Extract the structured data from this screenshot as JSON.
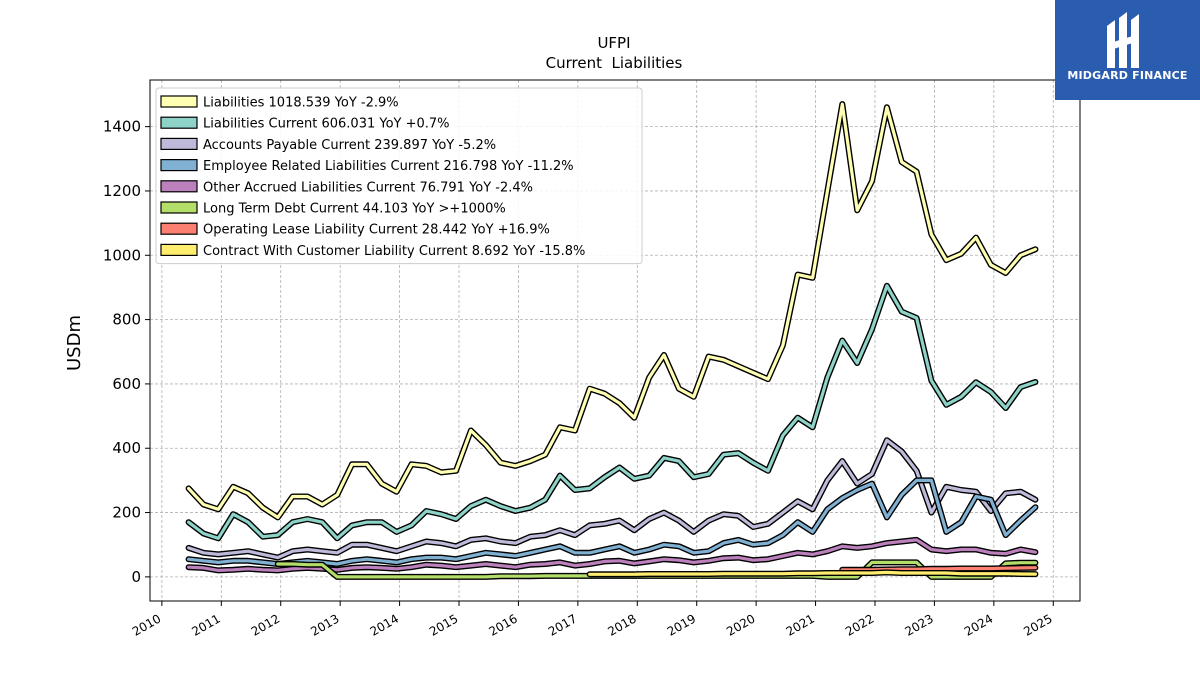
{
  "chart_data": {
    "type": "line",
    "title": "UFPI",
    "subtitle": "Current  Liabilities",
    "ylabel": "USDm",
    "xlabel": "",
    "xlim": [
      2009.8,
      2025.45
    ],
    "ylim": [
      -75,
      1545
    ],
    "xticks": [
      2010,
      2011,
      2012,
      2013,
      2014,
      2015,
      2016,
      2017,
      2018,
      2019,
      2020,
      2021,
      2022,
      2023,
      2024,
      2025
    ],
    "yticks": [
      0,
      200,
      400,
      600,
      800,
      1000,
      1200,
      1400
    ],
    "grid": true,
    "legend_position": "top-left",
    "series": [
      {
        "name": "Liabilities  1018.539 YoY -2.9%",
        "color": "#ffffb3",
        "x": [
          2010.45,
          2010.7,
          2010.95,
          2011.2,
          2011.45,
          2011.7,
          2011.95,
          2012.2,
          2012.45,
          2012.7,
          2012.95,
          2013.2,
          2013.45,
          2013.7,
          2013.95,
          2014.2,
          2014.45,
          2014.7,
          2014.95,
          2015.2,
          2015.45,
          2015.7,
          2015.95,
          2016.2,
          2016.45,
          2016.7,
          2016.95,
          2017.2,
          2017.45,
          2017.7,
          2017.95,
          2018.2,
          2018.45,
          2018.7,
          2018.95,
          2019.2,
          2019.45,
          2019.7,
          2019.95,
          2020.2,
          2020.45,
          2020.7,
          2020.95,
          2021.2,
          2021.45,
          2021.7,
          2021.95,
          2022.2,
          2022.45,
          2022.7,
          2022.95,
          2023.2,
          2023.45,
          2023.7,
          2023.95,
          2024.2,
          2024.45,
          2024.7
        ],
        "values": [
          275,
          225,
          210,
          280,
          260,
          215,
          185,
          250,
          250,
          225,
          255,
          350,
          350,
          290,
          265,
          350,
          345,
          325,
          330,
          455,
          410,
          355,
          345,
          360,
          380,
          465,
          455,
          585,
          570,
          540,
          495,
          620,
          690,
          585,
          560,
          685,
          675,
          655,
          635,
          615,
          720,
          940,
          930,
          1200,
          1470,
          1140,
          1230,
          1460,
          1290,
          1260,
          1065,
          985,
          1005,
          1055,
          970,
          945,
          1000,
          1018.539
        ]
      },
      {
        "name": "Liabilities Current  606.031 YoY +0.7%",
        "color": "#8dd3c7",
        "x": [
          2010.45,
          2010.7,
          2010.95,
          2011.2,
          2011.45,
          2011.7,
          2011.95,
          2012.2,
          2012.45,
          2012.7,
          2012.95,
          2013.2,
          2013.45,
          2013.7,
          2013.95,
          2014.2,
          2014.45,
          2014.7,
          2014.95,
          2015.2,
          2015.45,
          2015.7,
          2015.95,
          2016.2,
          2016.45,
          2016.7,
          2016.95,
          2017.2,
          2017.45,
          2017.7,
          2017.95,
          2018.2,
          2018.45,
          2018.7,
          2018.95,
          2019.2,
          2019.45,
          2019.7,
          2019.95,
          2020.2,
          2020.45,
          2020.7,
          2020.95,
          2021.2,
          2021.45,
          2021.7,
          2021.95,
          2022.2,
          2022.45,
          2022.7,
          2022.95,
          2023.2,
          2023.45,
          2023.7,
          2023.95,
          2024.2,
          2024.45,
          2024.7
        ],
        "values": [
          170,
          135,
          120,
          195,
          170,
          125,
          130,
          170,
          180,
          170,
          120,
          160,
          170,
          170,
          140,
          160,
          205,
          195,
          180,
          220,
          240,
          220,
          205,
          215,
          240,
          315,
          270,
          275,
          310,
          340,
          305,
          315,
          370,
          360,
          310,
          320,
          380,
          385,
          355,
          330,
          440,
          495,
          465,
          620,
          735,
          665,
          770,
          905,
          825,
          805,
          610,
          535,
          560,
          605,
          575,
          525,
          590,
          606.031
        ]
      },
      {
        "name": "Accounts Payable Current  239.897 YoY -5.2%",
        "color": "#bebada",
        "x": [
          2010.45,
          2010.7,
          2010.95,
          2011.2,
          2011.45,
          2011.7,
          2011.95,
          2012.2,
          2012.45,
          2012.7,
          2012.95,
          2013.2,
          2013.45,
          2013.7,
          2013.95,
          2014.2,
          2014.45,
          2014.7,
          2014.95,
          2015.2,
          2015.45,
          2015.7,
          2015.95,
          2016.2,
          2016.45,
          2016.7,
          2016.95,
          2017.2,
          2017.45,
          2017.7,
          2017.95,
          2018.2,
          2018.45,
          2018.7,
          2018.95,
          2019.2,
          2019.45,
          2019.7,
          2019.95,
          2020.2,
          2020.45,
          2020.7,
          2020.95,
          2021.2,
          2021.45,
          2021.7,
          2021.95,
          2022.2,
          2022.45,
          2022.7,
          2022.95,
          2023.2,
          2023.45,
          2023.7,
          2023.95,
          2024.2,
          2024.45,
          2024.7
        ],
        "values": [
          90,
          75,
          70,
          75,
          80,
          70,
          60,
          80,
          85,
          80,
          75,
          100,
          100,
          90,
          80,
          95,
          110,
          105,
          95,
          115,
          120,
          110,
          105,
          125,
          130,
          145,
          130,
          160,
          165,
          175,
          145,
          180,
          200,
          175,
          140,
          175,
          195,
          190,
          155,
          165,
          200,
          235,
          210,
          300,
          360,
          290,
          320,
          425,
          390,
          330,
          200,
          280,
          270,
          265,
          205,
          260,
          265,
          239.897
        ]
      },
      {
        "name": "Employee Related Liabilities Current  216.798 YoY -11.2%",
        "color": "#80b1d3",
        "x": [
          2010.45,
          2010.7,
          2010.95,
          2011.2,
          2011.45,
          2011.7,
          2011.95,
          2012.2,
          2012.45,
          2012.7,
          2012.95,
          2013.2,
          2013.45,
          2013.7,
          2013.95,
          2014.2,
          2014.45,
          2014.7,
          2014.95,
          2015.2,
          2015.45,
          2015.7,
          2015.95,
          2016.2,
          2016.45,
          2016.7,
          2016.95,
          2017.2,
          2017.45,
          2017.7,
          2017.95,
          2018.2,
          2018.45,
          2018.7,
          2018.95,
          2019.2,
          2019.45,
          2019.7,
          2019.95,
          2020.2,
          2020.45,
          2020.7,
          2020.95,
          2021.2,
          2021.45,
          2021.7,
          2021.95,
          2022.2,
          2022.45,
          2022.7,
          2022.95,
          2023.2,
          2023.45,
          2023.7,
          2023.95,
          2024.2,
          2024.45,
          2024.7
        ],
        "values": [
          55,
          50,
          45,
          50,
          50,
          45,
          40,
          45,
          50,
          45,
          40,
          50,
          55,
          50,
          45,
          55,
          60,
          60,
          55,
          65,
          75,
          70,
          65,
          75,
          85,
          95,
          75,
          75,
          85,
          95,
          75,
          85,
          100,
          95,
          75,
          80,
          105,
          115,
          100,
          105,
          130,
          170,
          140,
          210,
          245,
          270,
          290,
          185,
          255,
          300,
          300,
          140,
          170,
          250,
          240,
          130,
          175,
          216.798
        ]
      },
      {
        "name": "Other Accrued Liabilities Current  76.791 YoY -2.4%",
        "color": "#bc80bd",
        "x": [
          2010.45,
          2010.7,
          2010.95,
          2011.2,
          2011.45,
          2011.7,
          2011.95,
          2012.2,
          2012.45,
          2012.7,
          2012.95,
          2013.2,
          2013.45,
          2013.7,
          2013.95,
          2014.2,
          2014.45,
          2014.7,
          2014.95,
          2015.2,
          2015.45,
          2015.7,
          2015.95,
          2016.2,
          2016.45,
          2016.7,
          2016.95,
          2017.2,
          2017.45,
          2017.7,
          2017.95,
          2018.2,
          2018.45,
          2018.7,
          2018.95,
          2019.2,
          2019.45,
          2019.7,
          2019.95,
          2020.2,
          2020.45,
          2020.7,
          2020.95,
          2021.2,
          2021.45,
          2021.7,
          2021.95,
          2022.2,
          2022.45,
          2022.7,
          2022.95,
          2023.2,
          2023.45,
          2023.7,
          2023.95,
          2024.2,
          2024.45,
          2024.7
        ],
        "values": [
          30,
          28,
          20,
          22,
          25,
          22,
          20,
          25,
          28,
          25,
          22,
          28,
          30,
          28,
          25,
          30,
          38,
          35,
          30,
          35,
          40,
          35,
          30,
          38,
          40,
          45,
          35,
          40,
          48,
          50,
          42,
          48,
          55,
          52,
          45,
          50,
          58,
          60,
          52,
          55,
          65,
          75,
          70,
          80,
          95,
          90,
          95,
          105,
          110,
          115,
          85,
          80,
          85,
          85,
          75,
          72,
          85,
          76.791
        ]
      },
      {
        "name": "Long Term Debt Current  44.103 YoY >+1000%",
        "color": "#b3de69",
        "x": [
          2011.95,
          2012.2,
          2012.45,
          2012.7,
          2012.95,
          2013.2,
          2013.45,
          2013.7,
          2013.95,
          2014.2,
          2014.45,
          2014.7,
          2014.95,
          2015.2,
          2015.45,
          2015.7,
          2015.95,
          2016.2,
          2016.45,
          2016.7,
          2016.95,
          2017.2,
          2017.45,
          2017.7,
          2017.95,
          2018.2,
          2018.45,
          2018.7,
          2018.95,
          2019.2,
          2019.45,
          2019.7,
          2019.95,
          2020.2,
          2020.45,
          2020.7,
          2020.95,
          2021.2,
          2021.45,
          2021.7,
          2021.95,
          2022.2,
          2022.45,
          2022.7,
          2022.95,
          2023.2,
          2023.45,
          2023.7,
          2023.95,
          2024.2,
          2024.45,
          2024.7
        ],
        "values": [
          40,
          40,
          38,
          38,
          0,
          0,
          0,
          0,
          0,
          0,
          0,
          0,
          0,
          0,
          0,
          2,
          2,
          2,
          3,
          3,
          3,
          3,
          3,
          3,
          3,
          3,
          3,
          3,
          3,
          3,
          3,
          3,
          3,
          3,
          3,
          3,
          3,
          0,
          0,
          0,
          45,
          45,
          45,
          45,
          0,
          0,
          0,
          0,
          0,
          42,
          44,
          44.103
        ]
      },
      {
        "name": "Operating Lease Liability Current  28.442 YoY +16.9%",
        "color": "#fb8072",
        "x": [
          2021.45,
          2021.7,
          2021.95,
          2022.2,
          2022.45,
          2022.7,
          2022.95,
          2023.2,
          2023.45,
          2023.7,
          2023.95,
          2024.2,
          2024.45,
          2024.7
        ],
        "values": [
          22,
          22,
          22,
          23,
          24,
          24,
          25,
          25,
          26,
          26,
          26,
          27,
          28,
          28.442
        ]
      },
      {
        "name": "Contract With Customer Liability Current  8.692 YoY -15.8%",
        "color": "#ffed6f",
        "x": [
          2017.2,
          2017.45,
          2017.7,
          2017.95,
          2018.2,
          2018.45,
          2018.7,
          2018.95,
          2019.2,
          2019.45,
          2019.7,
          2019.95,
          2020.2,
          2020.45,
          2020.7,
          2020.95,
          2021.2,
          2021.45,
          2021.7,
          2021.95,
          2022.2,
          2022.45,
          2022.7,
          2022.95,
          2023.2,
          2023.45,
          2023.7,
          2023.95,
          2024.2,
          2024.45,
          2024.7
        ],
        "values": [
          8,
          8,
          8,
          8,
          9,
          9,
          9,
          9,
          9,
          10,
          10,
          10,
          10,
          10,
          11,
          11,
          12,
          12,
          12,
          12,
          14,
          12,
          12,
          12,
          12,
          10,
          10,
          10,
          10,
          9,
          8.692
        ]
      }
    ]
  },
  "logo": {
    "text": "MIDGARD FINANCE",
    "background": "#2a5db0"
  }
}
